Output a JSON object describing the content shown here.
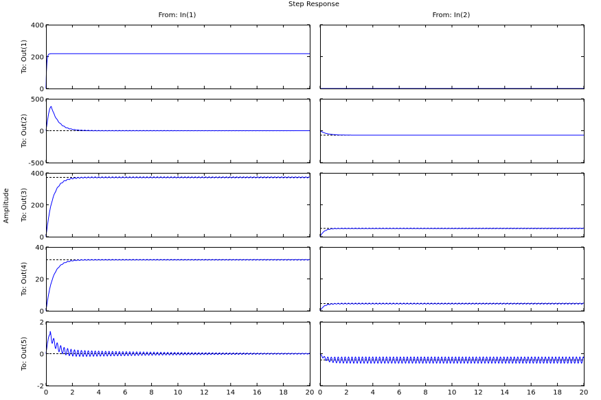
{
  "chart_data": {
    "type": "line",
    "title": "Step Response",
    "ylabel": "Amplitude",
    "xlim": [
      0,
      20
    ],
    "x_ticks": [
      "0",
      "2",
      "4",
      "6",
      "8",
      "10",
      "12",
      "14",
      "16",
      "18",
      "20"
    ],
    "columns": [
      "From: In(1)",
      "From: In(2)"
    ],
    "rows": [
      {
        "label": "To: Out(1)",
        "ylim": [
          0,
          400
        ],
        "yticks": [
          "0",
          "200",
          "400"
        ],
        "series": [
          {
            "final": 218,
            "peak": 218,
            "tpeak": 0.1,
            "rise": 0.05,
            "osc": 0,
            "steady_line": false
          },
          {
            "final": 0,
            "peak": 0,
            "tpeak": 0.1,
            "rise": 0.1,
            "osc": 0,
            "steady_line": false
          }
        ]
      },
      {
        "label": "To: Out(2)",
        "ylim": [
          -500,
          500
        ],
        "yticks": [
          "-500",
          "0",
          "500"
        ],
        "series": [
          {
            "final": 0,
            "peak": 380,
            "tpeak": 0.4,
            "rise": 0.4,
            "osc": 5,
            "steady_line": true
          },
          {
            "final": -70,
            "peak": 0,
            "tpeak": 0,
            "rise": 0.5,
            "osc": 0,
            "steady_line": true
          }
        ]
      },
      {
        "label": "To: Out(3)",
        "ylim": [
          0,
          400
        ],
        "yticks": [
          "0",
          "200",
          "400"
        ],
        "series": [
          {
            "final": 372,
            "peak": 372,
            "tpeak": 1.5,
            "rise": 0.5,
            "osc": 3,
            "steady_line": true
          },
          {
            "final": 52,
            "peak": 52,
            "tpeak": 1.0,
            "rise": 0.3,
            "osc": 2,
            "steady_line": true
          }
        ]
      },
      {
        "label": "To: Out(4)",
        "ylim": [
          0,
          40
        ],
        "yticks": [
          "0",
          "20",
          "40"
        ],
        "series": [
          {
            "final": 32,
            "peak": 32,
            "tpeak": 1.5,
            "rise": 0.5,
            "osc": 0.2,
            "steady_line": true
          },
          {
            "final": 4.5,
            "peak": 4.5,
            "tpeak": 1.0,
            "rise": 0.3,
            "osc": 0.3,
            "steady_line": true
          }
        ]
      },
      {
        "label": "To: Out(5)",
        "ylim": [
          -2,
          2
        ],
        "yticks": [
          "-2",
          "0",
          "2"
        ],
        "series": [
          {
            "final": 0,
            "peak": 1.2,
            "tpeak": 0.3,
            "rise": 0.15,
            "osc": 0.25,
            "steady_line": true
          },
          {
            "final": -0.4,
            "peak": 0,
            "tpeak": 0,
            "rise": 0.3,
            "osc": 0.2,
            "steady_line": true
          }
        ]
      }
    ],
    "colors": {
      "response": "#0000ff",
      "steady_state": "#000000",
      "axes": "#000000"
    }
  }
}
